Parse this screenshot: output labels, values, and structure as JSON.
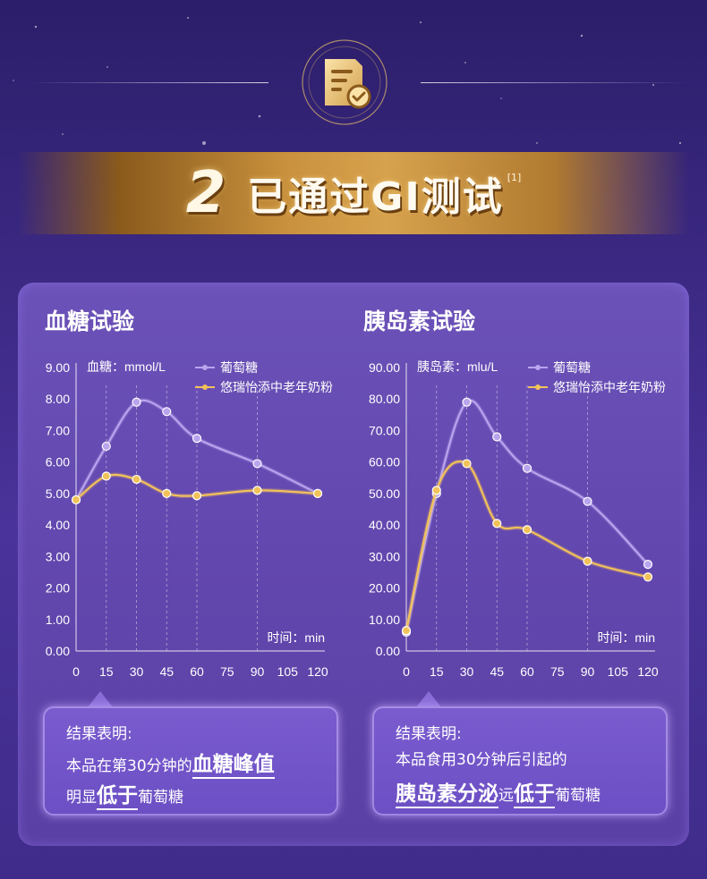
{
  "header": {
    "number": "2",
    "title": "已通过GI测试",
    "ref": "[1]",
    "badge_icon": "document-check-icon"
  },
  "colors": {
    "glucose": "#b9a4ee",
    "product": "#f2c25a",
    "gold": "#d7a24d"
  },
  "chart_data": [
    {
      "type": "line",
      "title": "血糖试验",
      "ylabel": "血糖：mmol/L",
      "xlabel": "时间：min",
      "x_ticks": [
        "0",
        "15",
        "30",
        "45",
        "60",
        "75",
        "90",
        "105",
        "120"
      ],
      "y_ticks": [
        "0.00",
        "1.00",
        "2.00",
        "3.00",
        "4.00",
        "5.00",
        "6.00",
        "7.00",
        "8.00",
        "9.00"
      ],
      "xlim": [
        0,
        120
      ],
      "ylim": [
        0,
        9
      ],
      "grid_x": [
        15,
        30,
        45,
        60,
        90
      ],
      "series": [
        {
          "name": "葡萄糖",
          "x": [
            0,
            15,
            30,
            45,
            60,
            90,
            120
          ],
          "values": [
            4.8,
            6.5,
            7.9,
            7.6,
            6.75,
            5.95,
            5.0
          ]
        },
        {
          "name": "悠瑞怡添中老年奶粉",
          "x": [
            0,
            15,
            30,
            45,
            60,
            90,
            120
          ],
          "values": [
            4.8,
            5.55,
            5.45,
            5.0,
            4.93,
            5.1,
            5.0
          ]
        }
      ]
    },
    {
      "type": "line",
      "title": "胰岛素试验",
      "ylabel": "胰岛素：mlu/L",
      "xlabel": "时间：min",
      "x_ticks": [
        "0",
        "15",
        "30",
        "45",
        "60",
        "75",
        "90",
        "105",
        "120"
      ],
      "y_ticks": [
        "0.00",
        "10.00",
        "20.00",
        "30.00",
        "40.00",
        "50.00",
        "60.00",
        "70.00",
        "80.00",
        "90.00"
      ],
      "xlim": [
        0,
        120
      ],
      "ylim": [
        0,
        90
      ],
      "grid_x": [
        15,
        30,
        45,
        60,
        90
      ],
      "series": [
        {
          "name": "葡萄糖",
          "x": [
            0,
            15,
            30,
            45,
            60,
            90,
            120
          ],
          "values": [
            6,
            50,
            79,
            68,
            58,
            47.5,
            27.5
          ]
        },
        {
          "name": "悠瑞怡添中老年奶粉",
          "x": [
            0,
            15,
            30,
            45,
            60,
            90,
            120
          ],
          "values": [
            6.5,
            51,
            59.5,
            40.5,
            38.5,
            28.5,
            23.5
          ]
        }
      ]
    }
  ],
  "results": [
    {
      "title": "结果表明:",
      "line1_pre": "本品在第30分钟的",
      "line1_strong": "血糖峰值",
      "line2_pre": "明显",
      "line2_strong": "低于",
      "line2_post": "葡萄糖"
    },
    {
      "title": "结果表明:",
      "line1_pre": "本品食用30分钟后引起的",
      "line2_strong1": "胰岛素分泌",
      "line2_mid": "远",
      "line2_strong2": "低于",
      "line2_post": "葡萄糖"
    }
  ]
}
